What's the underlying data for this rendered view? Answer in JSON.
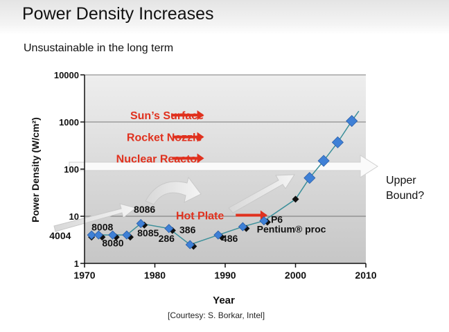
{
  "slide": {
    "title": "Power Density Increases",
    "subtitle": "Unsustainable in the long term",
    "courtesy": "[Courtesy: S. Borkar, Intel]"
  },
  "colors": {
    "series_line": "#3b8f9a",
    "marker_blue": "#3f80d6",
    "marker_black": "#111111",
    "reference_text": "#e0311e",
    "reference_arrow": "#e0311e"
  },
  "chart_data": {
    "type": "line",
    "title": "",
    "xlabel": "Year",
    "ylabel": "Power Density (W/cm²)",
    "yscale": "log",
    "xlim": [
      1970,
      2010
    ],
    "ylim": [
      1,
      10000
    ],
    "xticks": [
      1970,
      1980,
      1990,
      2000,
      2010
    ],
    "yticks": [
      1,
      10,
      100,
      1000,
      10000
    ],
    "grid": "horizontal",
    "series": [
      {
        "points": [
          {
            "x": 1971,
            "y": 4,
            "marker": "blue"
          },
          {
            "x": 1972,
            "y": 4,
            "marker": "blue"
          },
          {
            "x": 1974,
            "y": 4,
            "marker": "blue"
          },
          {
            "x": 1976,
            "y": 4,
            "marker": "blue"
          },
          {
            "x": 1978,
            "y": 7,
            "marker": "blue"
          },
          {
            "x": 1982,
            "y": 5.5,
            "marker": "blue"
          },
          {
            "x": 1985,
            "y": 2.5,
            "marker": "blue"
          },
          {
            "x": 1989,
            "y": 4,
            "marker": "blue"
          },
          {
            "x": 1992.5,
            "y": 6,
            "marker": "blue"
          },
          {
            "x": 1995.5,
            "y": 8,
            "marker": "blue"
          },
          {
            "x": 2000,
            "y": 23,
            "marker": "black"
          },
          {
            "x": 2002,
            "y": 65,
            "marker": "blue"
          },
          {
            "x": 2004,
            "y": 150,
            "marker": "blue"
          },
          {
            "x": 2006,
            "y": 370,
            "marker": "blue"
          },
          {
            "x": 2008,
            "y": 1050,
            "marker": "blue"
          }
        ]
      }
    ],
    "black_markers": [
      {
        "x": 1971,
        "y": 3.6
      },
      {
        "x": 1972.5,
        "y": 3.6
      },
      {
        "x": 1974.5,
        "y": 3.6
      },
      {
        "x": 1976.5,
        "y": 3.6
      },
      {
        "x": 1978.5,
        "y": 6.5
      },
      {
        "x": 1982.5,
        "y": 5
      },
      {
        "x": 1985.5,
        "y": 2.3
      },
      {
        "x": 1989.5,
        "y": 3.6
      },
      {
        "x": 1993,
        "y": 5.5
      },
      {
        "x": 1996,
        "y": 7.5
      }
    ],
    "point_labels": [
      {
        "text": "4004",
        "x": 1965,
        "y": 3.9
      },
      {
        "text": "8008",
        "x": 1971,
        "y": 5.9
      },
      {
        "text": "8080",
        "x": 1972.5,
        "y": 2.7
      },
      {
        "text": "8086",
        "x": 1977,
        "y": 14
      },
      {
        "text": "8085",
        "x": 1977.5,
        "y": 4.4
      },
      {
        "text": "286",
        "x": 1980.5,
        "y": 3.4
      },
      {
        "text": "386",
        "x": 1983.5,
        "y": 5.2
      },
      {
        "text": "486",
        "x": 1989.5,
        "y": 3.4
      },
      {
        "text": "P6",
        "x": 1996.5,
        "y": 8.6
      },
      {
        "text": "Pentium® proc",
        "x": 1994.5,
        "y": 5.3
      }
    ],
    "reference_levels": [
      {
        "label": "Sun’s Surface",
        "y": 1400,
        "text_x": 1976.5,
        "arrow_x": [
          1982.5,
          1987
        ]
      },
      {
        "label": "Rocket Nozzle",
        "y": 480,
        "text_x": 1976,
        "arrow_x": [
          1982.5,
          1987
        ]
      },
      {
        "label": "Nuclear Reactor",
        "y": 170,
        "text_x": 1974.5,
        "arrow_x": [
          1982.5,
          1987
        ]
      },
      {
        "label": "Hot Plate",
        "y": 10.5,
        "text_x": 1983,
        "arrow_x": [
          1991.5,
          1996
        ]
      }
    ],
    "annotations": [
      {
        "text": "Upper",
        "line": 1
      },
      {
        "text": "Bound?",
        "line": 2
      }
    ]
  }
}
